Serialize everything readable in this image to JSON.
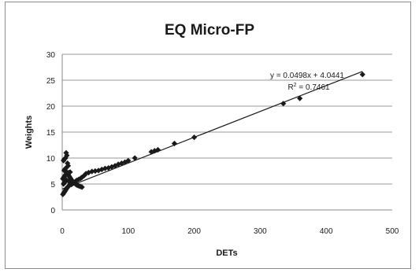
{
  "chart_data": {
    "type": "scatter",
    "title": "EQ Micro-FP",
    "xlabel": "DETs",
    "ylabel": "Weights",
    "xlim": [
      0,
      500
    ],
    "ylim": [
      0,
      30
    ],
    "x_ticks": [
      "0",
      "100",
      "200",
      "300",
      "400",
      "500"
    ],
    "y_ticks": [
      "0",
      "5",
      "10",
      "15",
      "20",
      "25",
      "30"
    ],
    "grid": "horizontal major gridlines",
    "legend": "none",
    "marker_color": "#1a1a1a",
    "series": [
      {
        "x": [
          1,
          2,
          3,
          4,
          5,
          6,
          7,
          8,
          9,
          10,
          2,
          3,
          4,
          5,
          6,
          1,
          2,
          3,
          4,
          5,
          8,
          10,
          12,
          3,
          4,
          5,
          6,
          7,
          8,
          9,
          10,
          11,
          12,
          13,
          14,
          15,
          16,
          18,
          20,
          22,
          24,
          26,
          28,
          30,
          2,
          3,
          5,
          6,
          7,
          8,
          9,
          10,
          12,
          14,
          16,
          18,
          20,
          22,
          25,
          28,
          30,
          33,
          36,
          40,
          45,
          50,
          55,
          60,
          65,
          70,
          75,
          80,
          85,
          90,
          95,
          100,
          110,
          135,
          140,
          145,
          170,
          200,
          335,
          360,
          455
        ],
        "y": [
          3.0,
          3.2,
          3.4,
          3.6,
          3.8,
          4.0,
          4.2,
          4.4,
          4.5,
          4.6,
          5.0,
          5.2,
          5.4,
          5.6,
          5.8,
          6.0,
          6.2,
          6.4,
          6.6,
          6.8,
          7.0,
          7.2,
          7.3,
          7.6,
          7.8,
          8.0,
          7.4,
          7.2,
          7.0,
          6.8,
          6.6,
          6.4,
          6.2,
          6.0,
          5.8,
          5.6,
          5.4,
          5.2,
          5.0,
          4.8,
          4.7,
          4.6,
          4.5,
          4.4,
          9.5,
          9.8,
          10.0,
          11.0,
          10.5,
          9.0,
          8.5,
          5.5,
          5.0,
          4.9,
          5.1,
          5.3,
          5.5,
          5.7,
          5.9,
          6.1,
          6.3,
          6.6,
          7.0,
          7.2,
          7.4,
          7.5,
          7.6,
          7.8,
          8.0,
          8.1,
          8.3,
          8.5,
          8.8,
          9.0,
          9.2,
          9.5,
          10.0,
          11.2,
          11.4,
          11.6,
          12.8,
          14.0,
          20.5,
          21.5,
          26.1
        ]
      }
    ],
    "trendline": {
      "slope": 0.0498,
      "intercept": 4.0441
    },
    "annotations": {
      "equation": "y = 0.0498x + 4.0441",
      "r2_prefix": "R",
      "r2_sup": "2",
      "r2_suffix": " = 0.7461"
    }
  }
}
